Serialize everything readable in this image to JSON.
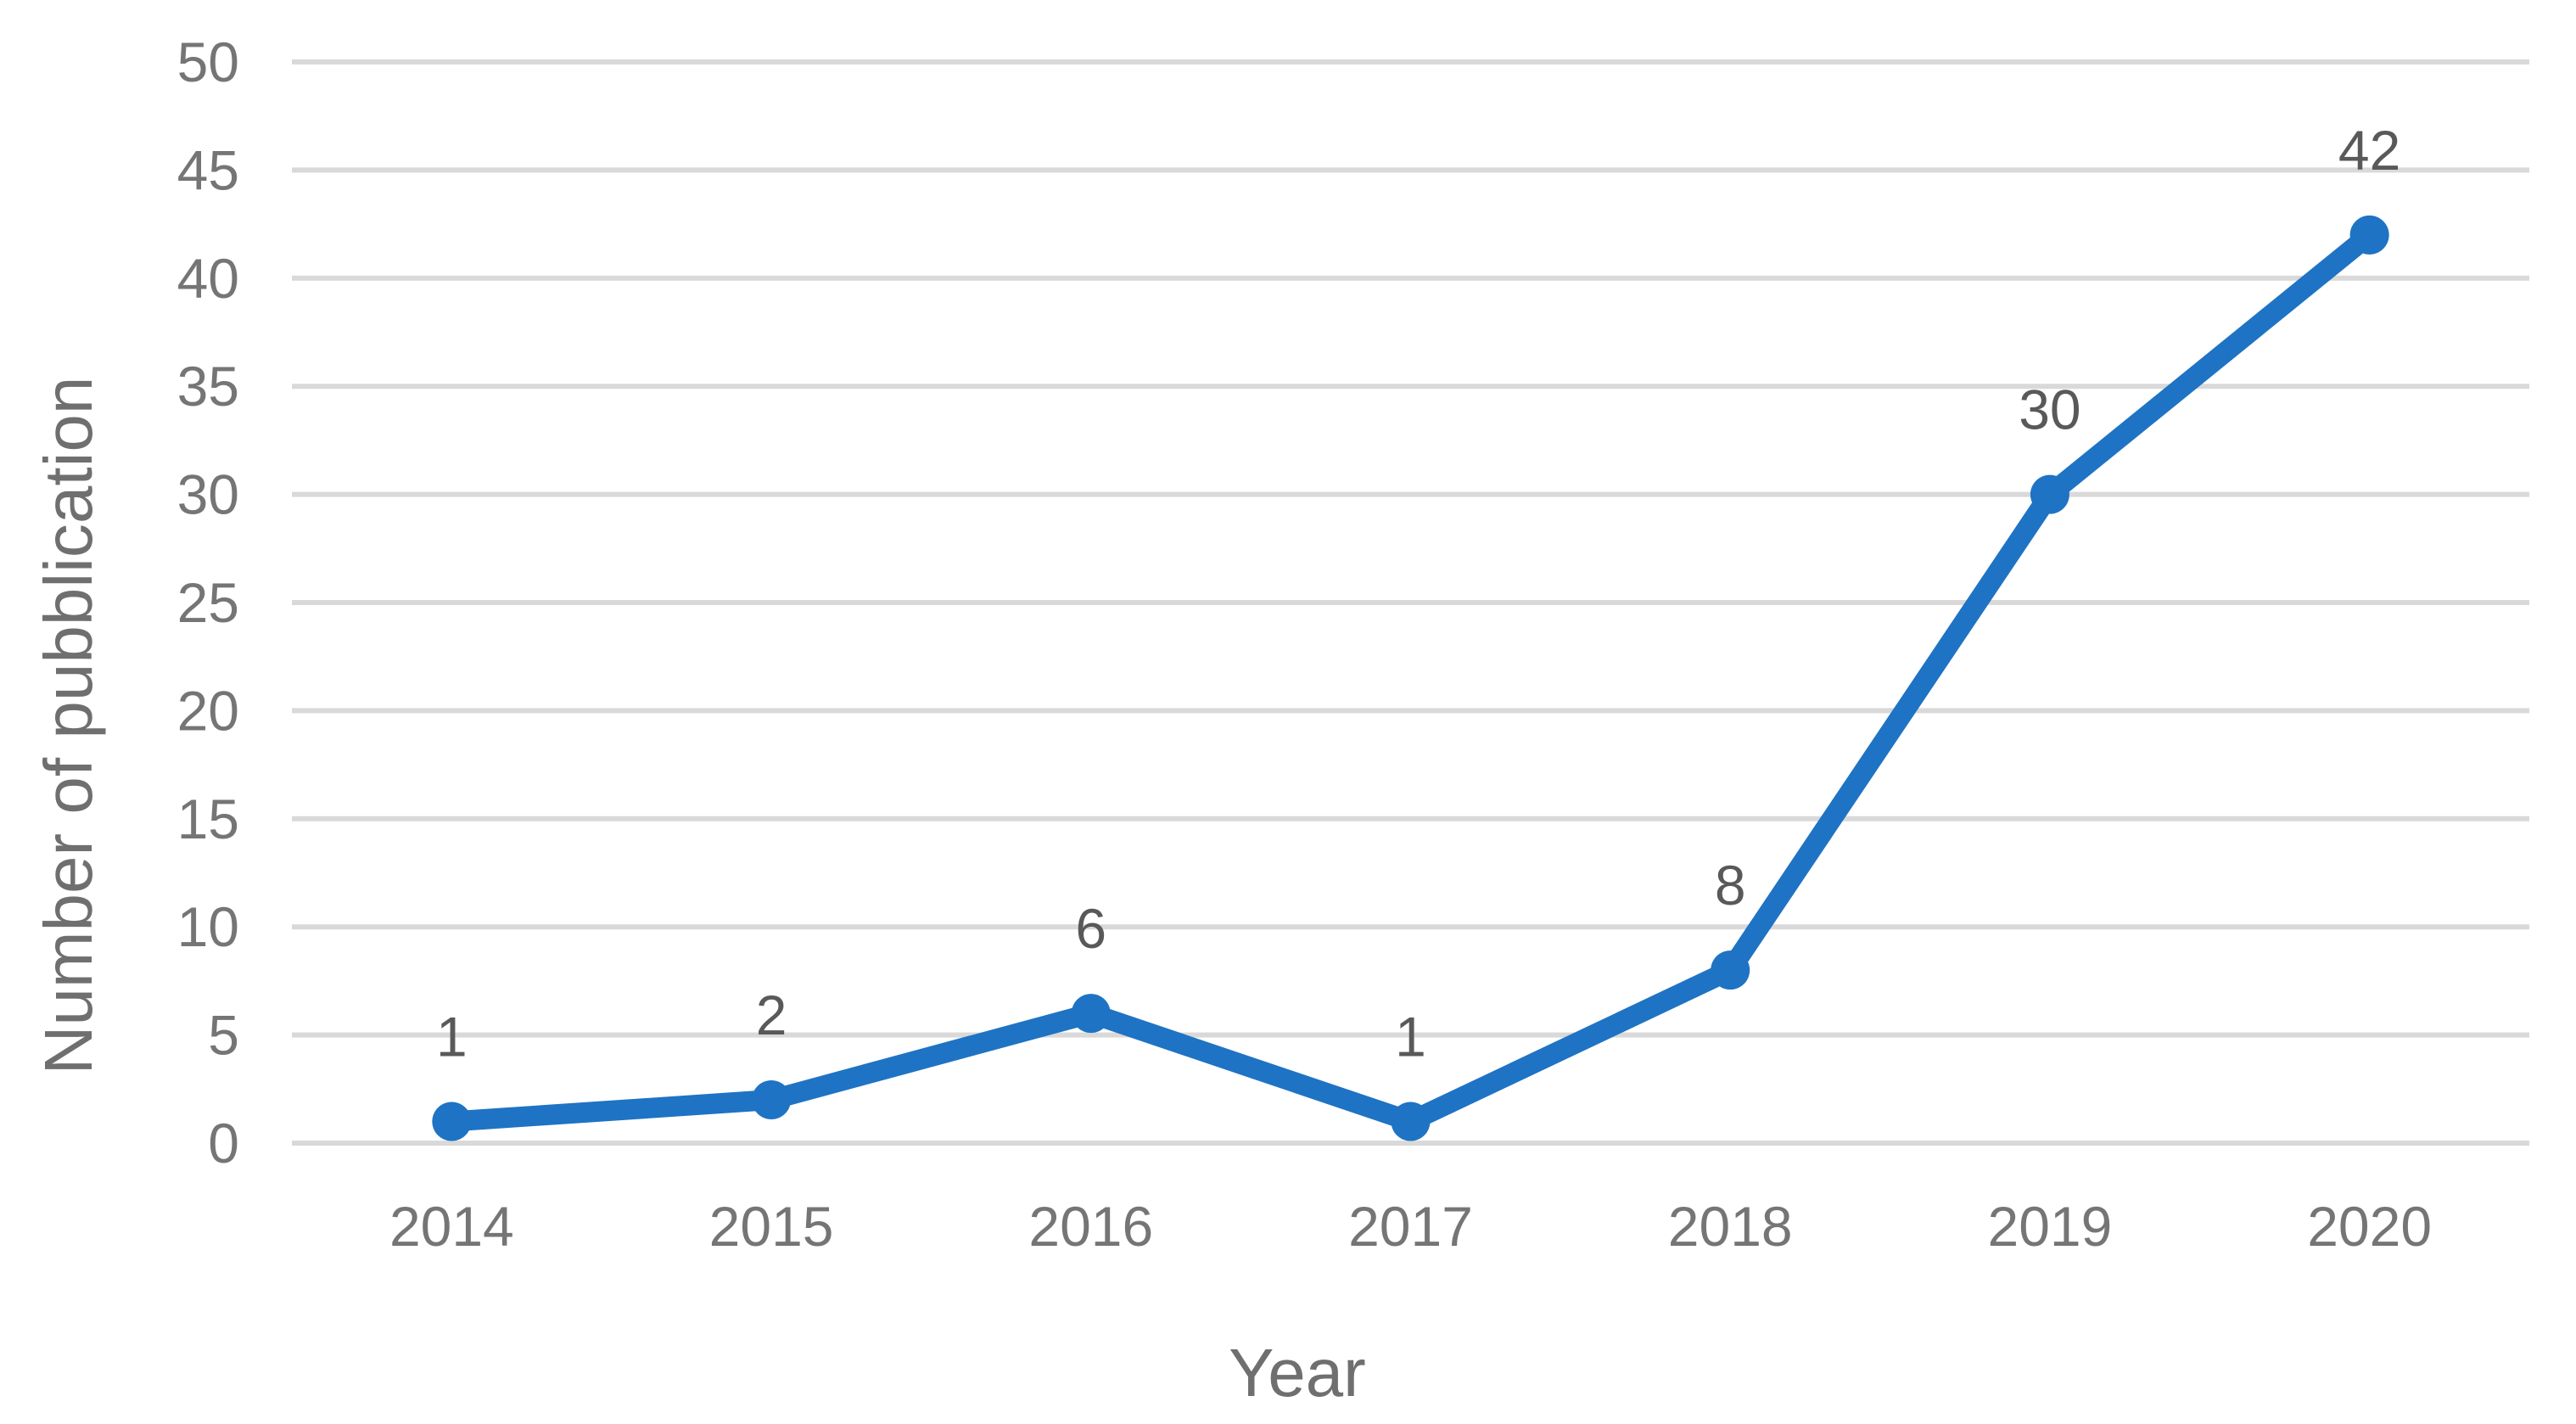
{
  "chart_data": {
    "type": "line",
    "title": "",
    "xlabel": "Year",
    "ylabel": "Number of pubblication",
    "categories": [
      "2014",
      "2015",
      "2016",
      "2017",
      "2018",
      "2019",
      "2020"
    ],
    "series": [
      {
        "name": "Number of pubblication",
        "values": [
          1,
          2,
          6,
          1,
          8,
          30,
          42
        ],
        "data_labels": [
          "1",
          "2",
          "6",
          "1",
          "8",
          "30",
          "42"
        ]
      }
    ],
    "data_labels_visible": true,
    "ylim": [
      0,
      50
    ],
    "ytick_step": 5,
    "yticks": [
      "0",
      "5",
      "10",
      "15",
      "20",
      "25",
      "30",
      "35",
      "40",
      "45",
      "50"
    ],
    "grid": "horizontal-only",
    "legend_position": "none",
    "marker_style": "filled-circle",
    "colors": {
      "line": "#1e73c4",
      "marker": "#1e73c4",
      "gridline": "#d9d9d9",
      "tick_text": "#757575",
      "data_label_text": "#595959",
      "axis_title_text": "#6f6f6f",
      "background": "#ffffff"
    }
  }
}
